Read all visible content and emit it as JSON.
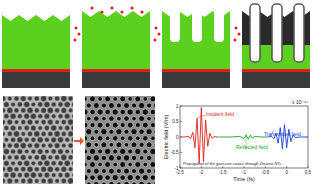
{
  "chart_data": {
    "type": "line",
    "x_label": "Time (fs)",
    "y_label": "Electric field (V/m)",
    "annotations": [
      "Incident field",
      "Reflected field",
      "Transmitted field",
      "Propagation of the gaussian source through Zirconia NTs",
      "x 10⁻¹⁴"
    ],
    "xlim": [
      -2.5,
      0.5
    ],
    "xticks": [
      -2.5,
      -2,
      -1.5,
      -1,
      -0.5,
      0,
      0.5
    ],
    "ylim": [
      -1,
      1
    ],
    "yticks": [
      -1,
      -0.5,
      0,
      0.5,
      1
    ],
    "series": [
      {
        "name": "Incident field",
        "color": "#e0201c",
        "x": [
          -2.5,
          -2.4,
          -2.3,
          -2.25,
          -2.2,
          -2.15,
          -2.1,
          -2.05,
          -2.0,
          -1.95,
          -1.9,
          -1.85,
          -1.8,
          -1.75,
          -1.7,
          -1.6
        ],
        "values": [
          0,
          0,
          0.02,
          -0.05,
          0.15,
          -0.35,
          0.6,
          -0.85,
          0.95,
          -0.8,
          0.55,
          -0.3,
          0.12,
          -0.04,
          0.01,
          0
        ]
      },
      {
        "name": "Reflected field",
        "color": "#1aa41a",
        "x": [
          -1.6,
          -1.3,
          -1.1,
          -1.0,
          -0.95,
          -0.9,
          -0.85,
          -0.8,
          -0.75,
          -0.6,
          -0.45
        ],
        "values": [
          0,
          0,
          0.02,
          -0.05,
          0.06,
          -0.07,
          0.06,
          -0.04,
          0.02,
          0,
          0
        ]
      },
      {
        "name": "Transmitted field",
        "color": "#1a3fd0",
        "x": [
          -0.45,
          -0.35,
          -0.3,
          -0.25,
          -0.2,
          -0.15,
          -0.1,
          -0.05,
          0,
          0.05,
          0.1,
          0.15,
          0.2,
          0.3,
          0.5
        ],
        "values": [
          0,
          0.02,
          -0.06,
          0.12,
          -0.2,
          0.3,
          -0.38,
          0.4,
          -0.35,
          0.25,
          -0.15,
          0.07,
          -0.02,
          0,
          0
        ]
      }
    ]
  }
}
